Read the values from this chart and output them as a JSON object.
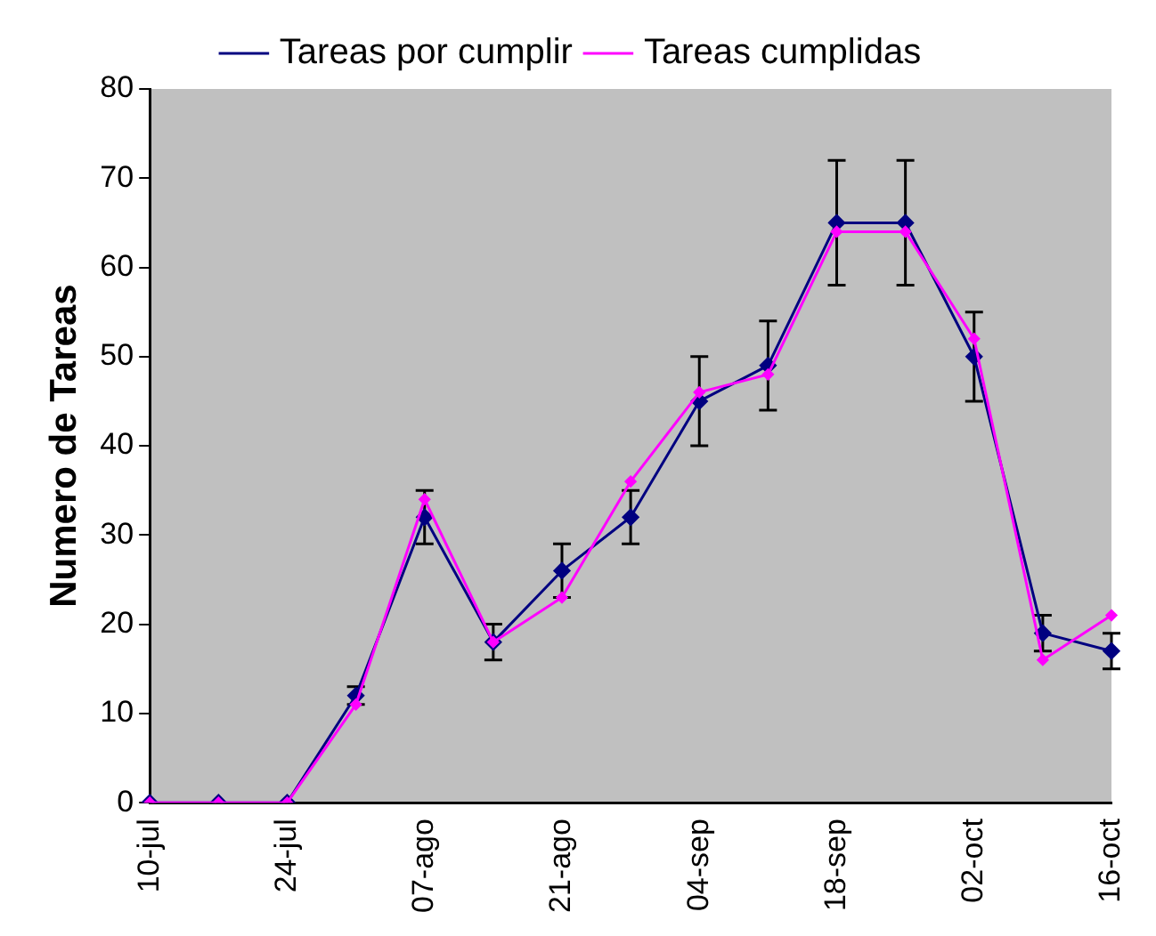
{
  "chart_data": {
    "type": "line",
    "ylabel": "Numero de Tareas",
    "categories": [
      "10-jul",
      null,
      "24-jul",
      null,
      "07-ago",
      null,
      "21-ago",
      null,
      "04-sep",
      null,
      "18-sep",
      null,
      "02-oct",
      null,
      "16-oct"
    ],
    "series": [
      {
        "name": "Tareas por cumplir",
        "color": "#000080",
        "values": [
          0,
          0,
          0,
          12,
          32,
          18,
          26,
          32,
          45,
          49,
          65,
          65,
          50,
          19,
          17
        ],
        "errors": [
          null,
          null,
          null,
          1,
          3,
          2,
          3,
          3,
          5,
          5,
          7,
          7,
          5,
          2,
          2
        ]
      },
      {
        "name": "Tareas cumplidas",
        "color": "#ff00ff",
        "values": [
          0,
          0,
          0,
          11,
          34,
          18,
          23,
          36,
          46,
          48,
          64,
          64,
          52,
          16,
          21
        ]
      }
    ],
    "ylim": [
      0,
      80
    ],
    "yticks": [
      0,
      10,
      20,
      30,
      40,
      50,
      60,
      70,
      80
    ],
    "grid": false,
    "legend": "top",
    "marker": "diamond",
    "line_style": "solid"
  }
}
